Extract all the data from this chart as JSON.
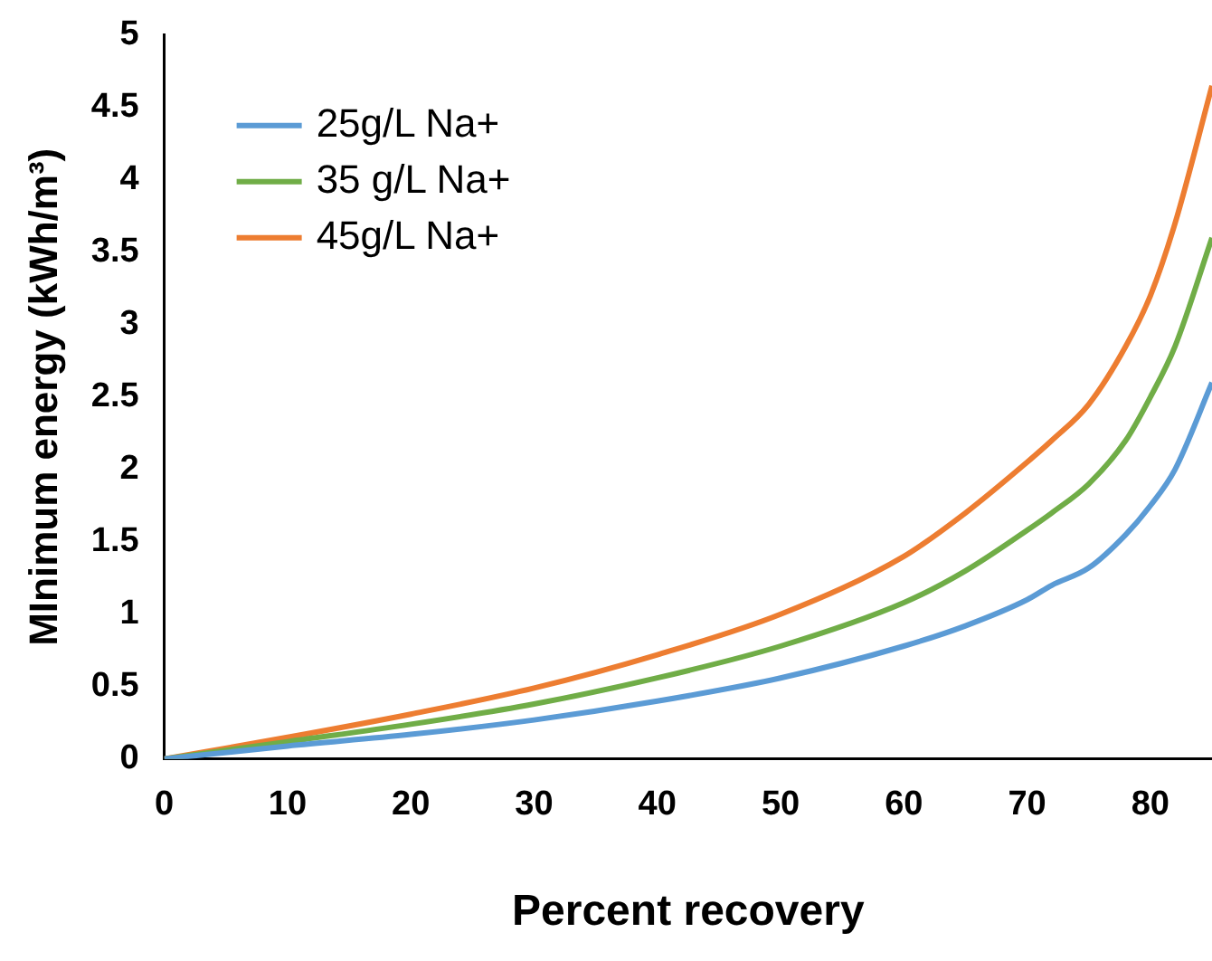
{
  "chart_data": {
    "type": "line",
    "xlabel": "Percent recovery",
    "ylabel": "MInimum energy (kWh/m³)",
    "xlim": [
      0,
      85
    ],
    "xticks": [
      0,
      10,
      20,
      30,
      40,
      50,
      60,
      70,
      80
    ],
    "ylim": [
      0,
      5
    ],
    "yticks": [
      0,
      0.5,
      1,
      1.5,
      2,
      2.5,
      3,
      3.5,
      4,
      4.5,
      5
    ],
    "grid": false,
    "legend": "top left",
    "marker": "none",
    "line_style": "solid",
    "x": [
      0,
      10,
      20,
      30,
      40,
      50,
      60,
      65,
      70,
      72,
      75,
      78,
      80,
      82,
      85
    ],
    "series": [
      {
        "name": "25g/L Na+",
        "color": "#5b9bd5",
        "values": [
          0,
          0.09,
          0.17,
          0.27,
          0.4,
          0.56,
          0.78,
          0.92,
          1.1,
          1.2,
          1.32,
          1.55,
          1.75,
          2.0,
          2.6
        ]
      },
      {
        "name": "35 g/L Na+",
        "color": "#70ad47",
        "values": [
          0,
          0.12,
          0.24,
          0.38,
          0.56,
          0.78,
          1.08,
          1.3,
          1.58,
          1.7,
          1.9,
          2.2,
          2.5,
          2.85,
          3.6
        ]
      },
      {
        "name": "45g/L Na+",
        "color": "#ed7d31",
        "values": [
          0,
          0.15,
          0.31,
          0.49,
          0.72,
          1.0,
          1.4,
          1.7,
          2.05,
          2.2,
          2.45,
          2.85,
          3.2,
          3.7,
          4.65
        ]
      }
    ]
  }
}
